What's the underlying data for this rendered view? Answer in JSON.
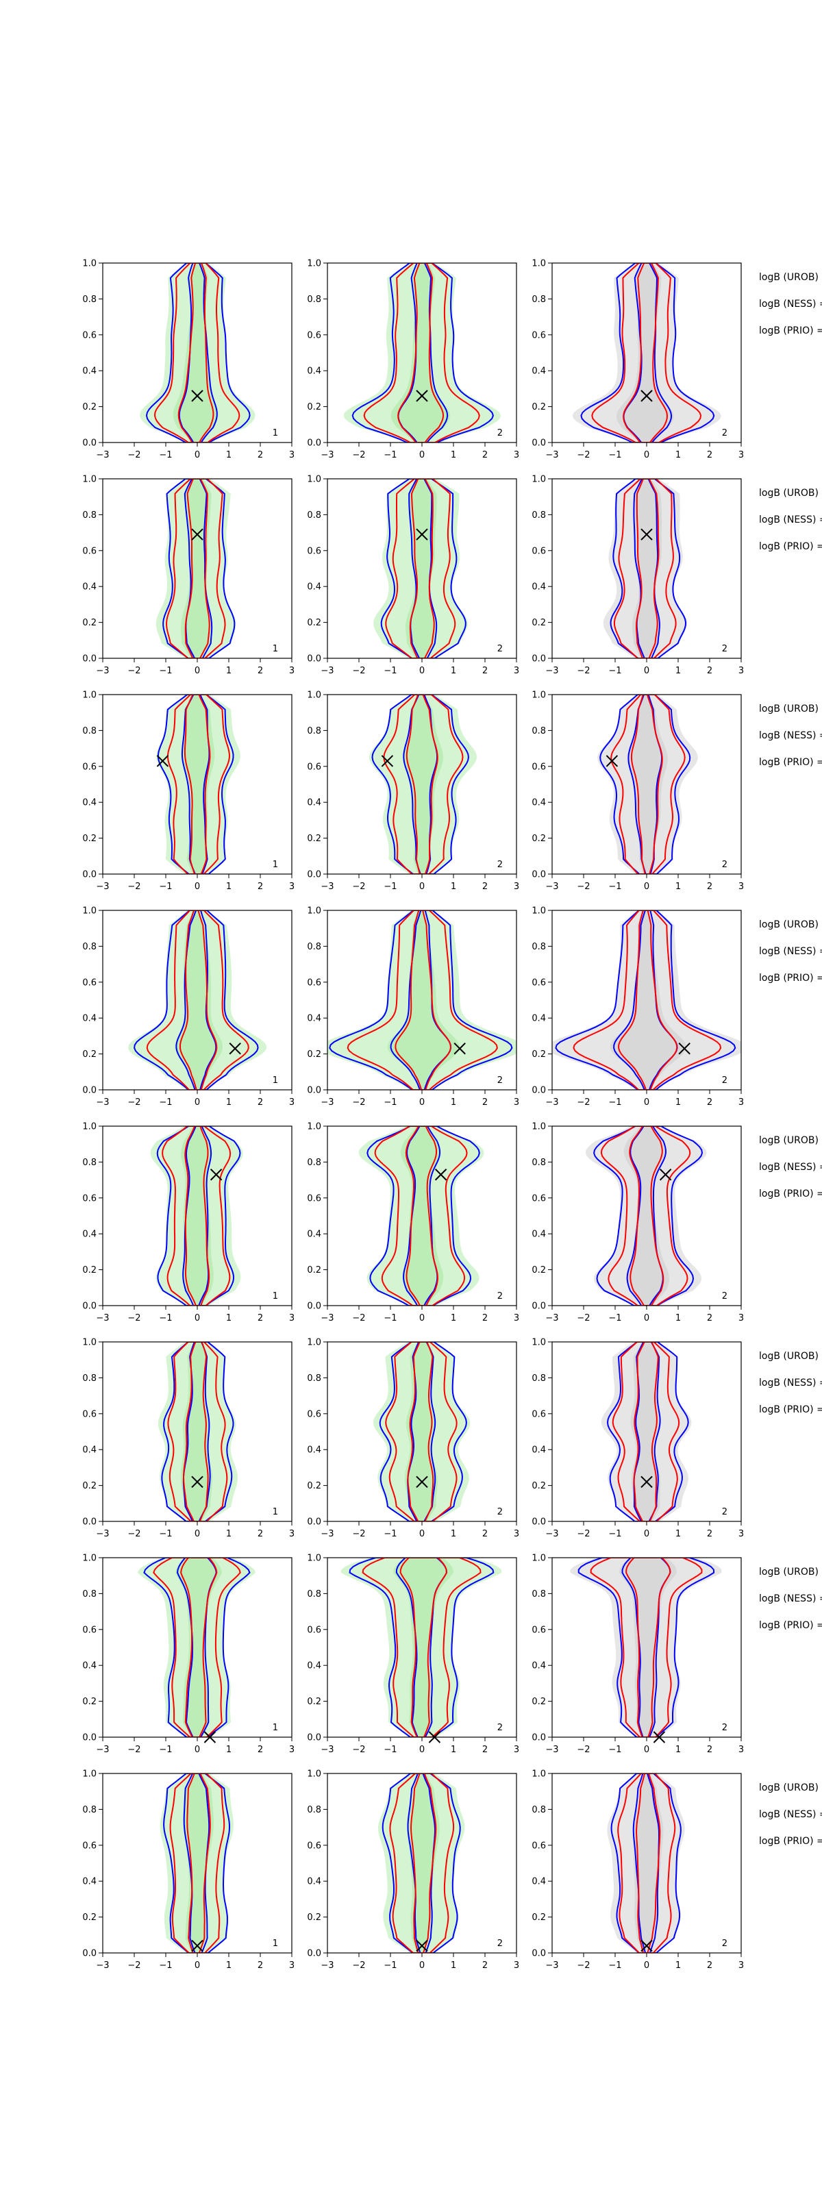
{
  "chart_data": {
    "type": "contour-grid",
    "rows": 8,
    "cols": 3,
    "xlim": [
      -3,
      3
    ],
    "ylim": [
      0,
      1
    ],
    "xticks": [
      -3,
      -2,
      -1,
      0,
      1,
      2,
      3
    ],
    "yticks": [
      0.0,
      0.2,
      0.4,
      0.6,
      0.8,
      1.0
    ],
    "xtick_labels": [
      "−3",
      "−2",
      "−1",
      "0",
      "1",
      "2",
      "3"
    ],
    "ytick_labels": [
      "0.0",
      "0.2",
      "0.4",
      "0.6",
      "0.8",
      "1.0"
    ],
    "panel_labels": [
      "1",
      "2",
      "2"
    ],
    "column_fill": [
      "#b9ecb4",
      "#b9ecb4",
      "#d6d6d6"
    ],
    "colors": {
      "blue": "#0000ff",
      "red": "#ff0000",
      "marker": "#000000"
    },
    "row_text": [
      "logB (UROB) =",
      "logB (NESS) =",
      "logB (PRIO) ="
    ],
    "markers": [
      {
        "x": 0.0,
        "y": 0.26
      },
      {
        "x": 0.0,
        "y": 0.69
      },
      {
        "x": -1.1,
        "y": 0.63
      },
      {
        "x": 1.2,
        "y": 0.23
      },
      {
        "x": 0.6,
        "y": 0.73
      },
      {
        "x": 0.0,
        "y": 0.22
      },
      {
        "x": 0.4,
        "y": 0.0
      },
      {
        "x": 0.0,
        "y": 0.04
      }
    ],
    "features": [
      [
        {
          "n": 0.0,
          "y": 0.15,
          "d": 1.2
        },
        {
          "n": 0.0,
          "y": 0.6,
          "d": 0.1
        }
      ],
      [
        {
          "n": -1,
          "y": 0.2,
          "d": 0.4
        },
        {
          "n": -1,
          "y": 0.55,
          "d": 0.2
        }
      ],
      [
        {
          "n": -1,
          "y": 0.65,
          "d": 0.5
        },
        {
          "n": 0,
          "y": 0.3,
          "d": 0.2
        }
      ],
      [
        {
          "n": 1,
          "y": 0.22,
          "d": 1.5
        },
        {
          "n": -1,
          "y": 0.28,
          "d": 0.6
        }
      ],
      [
        {
          "n": 0,
          "y": 0.85,
          "d": 0.9
        },
        {
          "n": 0,
          "y": 0.15,
          "d": 0.6
        }
      ],
      [
        {
          "n": 0,
          "y": 0.55,
          "d": 0.5
        },
        {
          "n": 0,
          "y": 0.25,
          "d": 0.3
        }
      ],
      [
        {
          "n": -1,
          "y": 0.95,
          "d": 1.4
        },
        {
          "n": 0,
          "y": 0.3,
          "d": 0.2
        }
      ],
      [
        {
          "n": 0,
          "y": 0.7,
          "d": 0.2
        },
        {
          "n": 0,
          "y": 0.2,
          "d": 0.2
        }
      ]
    ]
  }
}
